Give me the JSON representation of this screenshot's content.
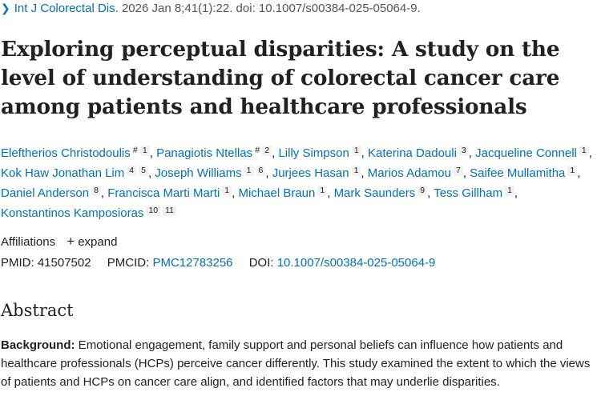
{
  "citation": {
    "journal": "Int J Colorectal Dis.",
    "details": "2026 Jan 8;41(1):22. doi: 10.1007/s00384-025-05064-9."
  },
  "title": "Exploring perceptual disparities: A study on the level of understanding of colorectal cancer care among patients and healthcare professionals",
  "authors": [
    {
      "name": "Eleftherios Christodoulis",
      "equal": "#",
      "aff": "1"
    },
    {
      "name": "Panagiotis Ntellas",
      "equal": "#",
      "aff": "2"
    },
    {
      "name": "Lilly Simpson",
      "aff": "1"
    },
    {
      "name": "Katerina Dadouli",
      "aff": "3"
    },
    {
      "name": "Jacqueline Connell",
      "aff": "1"
    },
    {
      "name": "Kok Haw Jonathan Lim",
      "aff": "4",
      "aff2": "5"
    },
    {
      "name": "Joseph Williams",
      "aff": "1",
      "aff2": "6"
    },
    {
      "name": "Jurjees Hasan",
      "aff": "1"
    },
    {
      "name": "Marios Adamou",
      "aff": "7"
    },
    {
      "name": "Saifee Mullamitha",
      "aff": "1"
    },
    {
      "name": "Daniel Anderson",
      "aff": "8"
    },
    {
      "name": "Francisca Marti Marti",
      "aff": "1"
    },
    {
      "name": "Michael Braun",
      "aff": "1"
    },
    {
      "name": "Mark Saunders",
      "aff": "9"
    },
    {
      "name": "Tess Gillham",
      "aff": "1"
    },
    {
      "name": "Konstantinos Kamposioras",
      "aff": "10",
      "aff2": "11"
    }
  ],
  "affiliations": {
    "label": "Affiliations",
    "expand_label": "expand"
  },
  "ids": {
    "pmid_label": "PMID:",
    "pmid": "41507502",
    "pmcid_label": "PMCID:",
    "pmcid": "PMC12783256",
    "doi_label": "DOI:",
    "doi": "10.1007/s00384-025-05064-9"
  },
  "abstract": {
    "heading": "Abstract",
    "background_label": "Background:",
    "background_text": " Emotional engagement, family support and personal beliefs can influence how patients and healthcare professionals (HCPs) perceive cancer differently. This study examined the extent to which the views of patients and HCPs on cancer care align, and identified factors that may underlie disparities."
  }
}
